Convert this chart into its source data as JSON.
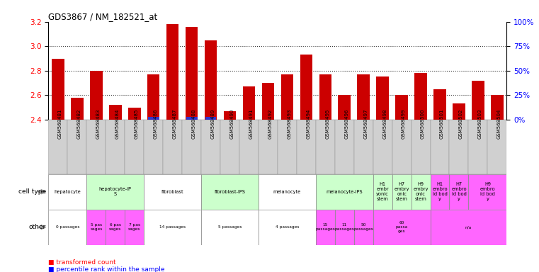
{
  "title": "GDS3867 / NM_182521_at",
  "samples": [
    "GSM568481",
    "GSM568482",
    "GSM568483",
    "GSM568484",
    "GSM568485",
    "GSM568486",
    "GSM568487",
    "GSM568488",
    "GSM568489",
    "GSM568490",
    "GSM568491",
    "GSM568492",
    "GSM568493",
    "GSM568494",
    "GSM568495",
    "GSM568496",
    "GSM568497",
    "GSM568498",
    "GSM568499",
    "GSM568500",
    "GSM568501",
    "GSM568502",
    "GSM568503",
    "GSM568504"
  ],
  "values": [
    2.9,
    2.58,
    2.8,
    2.52,
    2.5,
    2.77,
    3.18,
    3.16,
    3.05,
    2.47,
    2.67,
    2.7,
    2.77,
    2.93,
    2.77,
    2.6,
    2.77,
    2.75,
    2.6,
    2.78,
    2.65,
    2.53,
    2.72,
    2.6
  ],
  "percentile_indices": [
    5,
    7,
    8
  ],
  "percentile_values": [
    0.05,
    0.05,
    0.05
  ],
  "ylim_left": [
    2.4,
    3.2
  ],
  "ylim_right": [
    0,
    100
  ],
  "yticks_left": [
    2.4,
    2.6,
    2.8,
    3.0,
    3.2
  ],
  "yticks_right": [
    0,
    25,
    50,
    75,
    100
  ],
  "ytick_labels_right": [
    "0%",
    "25%",
    "50%",
    "75%",
    "100%"
  ],
  "bar_color": "#cc0000",
  "percentile_color": "#3333cc",
  "bg_color": "#ffffff",
  "xticklabel_bg": "#d0d0d0",
  "cell_type_groups": [
    {
      "label": "hepatocyte",
      "start": 0,
      "end": 2,
      "color": "#ffffff"
    },
    {
      "label": "hepatocyte-iP\nS",
      "start": 2,
      "end": 5,
      "color": "#ccffcc"
    },
    {
      "label": "fibroblast",
      "start": 5,
      "end": 8,
      "color": "#ffffff"
    },
    {
      "label": "fibroblast-IPS",
      "start": 8,
      "end": 11,
      "color": "#ccffcc"
    },
    {
      "label": "melanocyte",
      "start": 11,
      "end": 14,
      "color": "#ffffff"
    },
    {
      "label": "melanocyte-IPS",
      "start": 14,
      "end": 17,
      "color": "#ccffcc"
    },
    {
      "label": "H1\nembr\nyonic\nstem",
      "start": 17,
      "end": 18,
      "color": "#ccffcc"
    },
    {
      "label": "H7\nembry\nonic\nstem",
      "start": 18,
      "end": 19,
      "color": "#ccffcc"
    },
    {
      "label": "H9\nembry\nonic\nstem",
      "start": 19,
      "end": 20,
      "color": "#ccffcc"
    },
    {
      "label": "H1\nembro\nid bod\ny",
      "start": 20,
      "end": 21,
      "color": "#ff66ff"
    },
    {
      "label": "H7\nembro\nid bod\ny",
      "start": 21,
      "end": 22,
      "color": "#ff66ff"
    },
    {
      "label": "H9\nembro\nid bod\ny",
      "start": 22,
      "end": 24,
      "color": "#ff66ff"
    }
  ],
  "other_groups": [
    {
      "label": "0 passages",
      "start": 0,
      "end": 2,
      "color": "#ffffff"
    },
    {
      "label": "5 pas\nsages",
      "start": 2,
      "end": 3,
      "color": "#ff66ff"
    },
    {
      "label": "6 pas\nsages",
      "start": 3,
      "end": 4,
      "color": "#ff66ff"
    },
    {
      "label": "7 pas\nsages",
      "start": 4,
      "end": 5,
      "color": "#ff66ff"
    },
    {
      "label": "14 passages",
      "start": 5,
      "end": 8,
      "color": "#ffffff"
    },
    {
      "label": "5 passages",
      "start": 8,
      "end": 11,
      "color": "#ffffff"
    },
    {
      "label": "4 passages",
      "start": 11,
      "end": 14,
      "color": "#ffffff"
    },
    {
      "label": "15\npassages",
      "start": 14,
      "end": 15,
      "color": "#ff66ff"
    },
    {
      "label": "11\npassages",
      "start": 15,
      "end": 16,
      "color": "#ff66ff"
    },
    {
      "label": "50\npassages",
      "start": 16,
      "end": 17,
      "color": "#ff66ff"
    },
    {
      "label": "60\npassa\nges",
      "start": 17,
      "end": 20,
      "color": "#ff66ff"
    },
    {
      "label": "n/a",
      "start": 20,
      "end": 24,
      "color": "#ff66ff"
    }
  ],
  "grid_lines": [
    2.6,
    2.8,
    3.0
  ]
}
